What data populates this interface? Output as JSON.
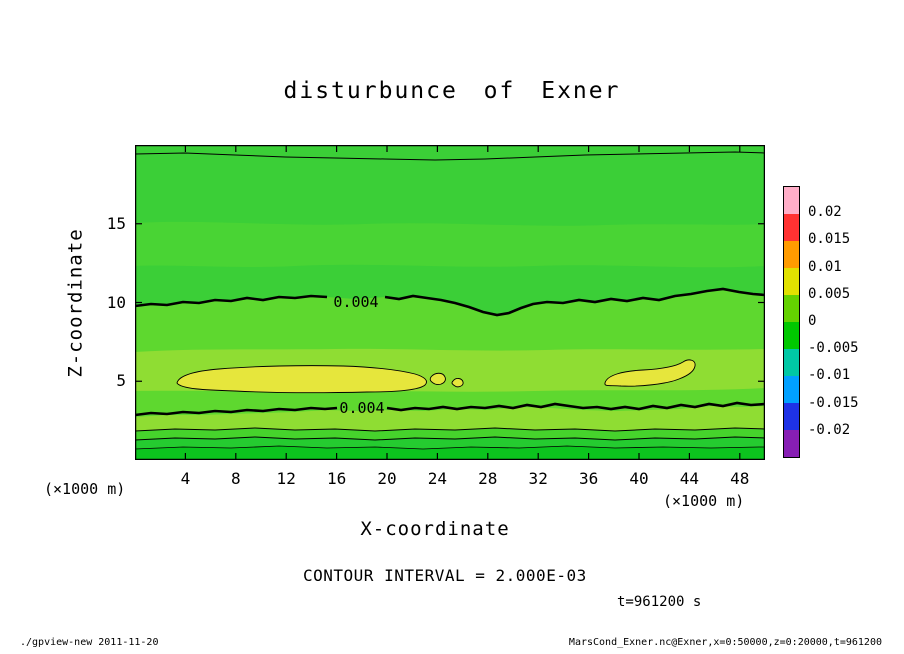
{
  "header": {
    "title": "disturbunce of Exner"
  },
  "chart_data": {
    "type": "heatmap",
    "title": "disturbunce of Exner",
    "xlabel": "X-coordinate",
    "ylabel": "Z-coordinate",
    "x_unit": "(×1000 m)",
    "y_unit": "(×1000 m)",
    "x_range": [
      0,
      50
    ],
    "z_range": [
      0,
      20
    ],
    "x_ticks": [
      "4",
      "8",
      "12",
      "16",
      "20",
      "24",
      "28",
      "32",
      "36",
      "40",
      "44",
      "48"
    ],
    "y_ticks": [
      "5",
      "10",
      "15"
    ],
    "grid": false,
    "contour_interval": 0.002,
    "contour_interval_label": "CONTOUR INTERVAL = 2.000E-03",
    "contour_line_labels": [
      "0.004",
      "0.004"
    ],
    "time_label": "t=961200 s",
    "colorbar": {
      "position": "right",
      "tick_labels": [
        "0.02",
        "0.015",
        "0.01",
        "0.005",
        "0",
        "-0.005",
        "-0.01",
        "-0.015",
        "-0.02"
      ],
      "colors_top_to_bottom": [
        "#ffaec8",
        "#ff3232",
        "#ff9b00",
        "#e1e100",
        "#64d200",
        "#00c800",
        "#00c8a5",
        "#00a0ff",
        "#1e32e6",
        "#871eb4"
      ]
    },
    "field": {
      "background": "positive Exner disturbance ~0.002 (green tone) over most of the domain",
      "thick_contour_level": 0.004,
      "thick_contours_at_z_1000m": [
        10,
        3
      ],
      "thin_contour_near_top_z_1000m": 19.3,
      "maxima": [
        {
          "x_extent_1000m": [
            3,
            24
          ],
          "z_extent_1000m": [
            4.5,
            6.5
          ],
          "value": "≈0.005 (yellow tone)"
        },
        {
          "x_extent_1000m": [
            36,
            44
          ],
          "z_extent_1000m": [
            4.5,
            6.5
          ],
          "value": "≈0.005 (yellow tone)"
        }
      ],
      "near_surface": "layered thin contour lines below z≈3 with brighter green tones toward z=0"
    }
  },
  "footer": {
    "left": "./gpview-new  2011-11-20",
    "right": "MarsCond_Exner.nc@Exner,x=0:50000,z=0:20000,t=961200"
  }
}
